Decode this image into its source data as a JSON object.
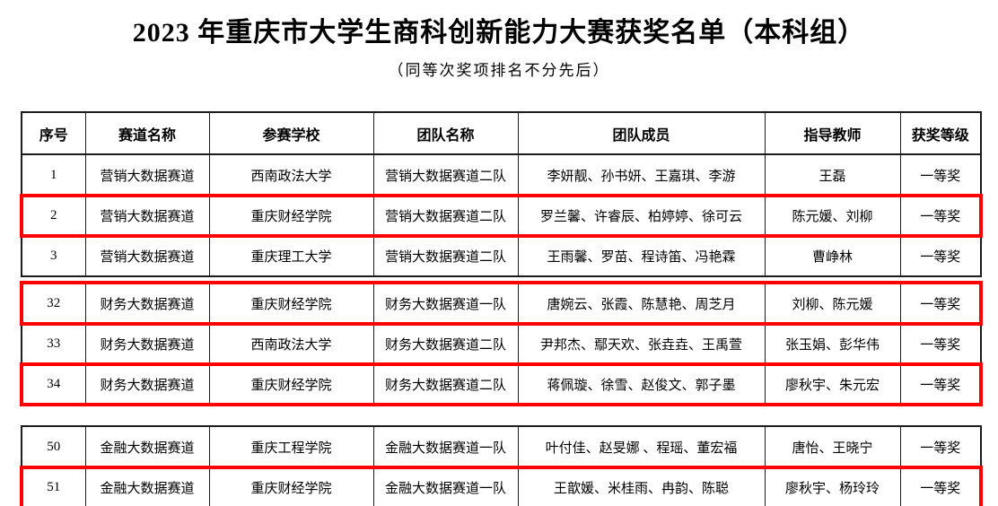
{
  "title": "2023 年重庆市大学生商科创新能力大赛获奖名单（本科组）",
  "subtitle": "（同等次奖项排名不分先后）",
  "table": {
    "columns": [
      "序号",
      "赛道名称",
      "参赛学校",
      "团队名称",
      "团队成员",
      "指导教师",
      "获奖等级"
    ],
    "highlight_color": "#fd0000",
    "border_color": "#1c1c1c",
    "blocks": [
      {
        "has_header": true,
        "partial_next_row": false,
        "rows": [
          {
            "no": "1",
            "track": "营销大数据赛道",
            "school": "西南政法大学",
            "team": "营销大数据赛道二队",
            "members": "李妍靓、孙书妍、王嘉琪、李游",
            "teachers": "王磊",
            "award": "一等奖",
            "highlighted": false
          },
          {
            "no": "2",
            "track": "营销大数据赛道",
            "school": "重庆财经学院",
            "team": "营销大数据赛道二队",
            "members": "罗兰馨、许睿辰、柏婷婷、徐可云",
            "teachers": "陈元媛、刘柳",
            "award": "一等奖",
            "highlighted": true
          },
          {
            "no": "3",
            "track": "营销大数据赛道",
            "school": "重庆理工大学",
            "team": "营销大数据赛道二队",
            "members": "王雨馨、罗苗、程诗笛、冯艳霖",
            "teachers": "曹峥林",
            "award": "一等奖",
            "highlighted": false
          }
        ]
      },
      {
        "has_header": false,
        "partial_next_row": false,
        "rows": [
          {
            "no": "32",
            "track": "财务大数据赛道",
            "school": "重庆财经学院",
            "team": "财务大数据赛道一队",
            "members": "唐婉云、张霞、陈慧艳、周芝月",
            "teachers": "刘柳、陈元媛",
            "award": "一等奖",
            "highlighted": true
          },
          {
            "no": "33",
            "track": "财务大数据赛道",
            "school": "西南政法大学",
            "team": "财务大数据赛道二队",
            "members": "尹邦杰、鄢天欢、张垚垚、王禹萱",
            "teachers": "张玉娟、彭华伟",
            "award": "一等奖",
            "highlighted": false
          },
          {
            "no": "34",
            "track": "财务大数据赛道",
            "school": "重庆财经学院",
            "team": "财务大数据赛道二队",
            "members": "蒋佩璇、徐雪、赵俊文、郭子墨",
            "teachers": "廖秋宇、朱元宏",
            "award": "一等奖",
            "highlighted": true
          }
        ]
      },
      {
        "has_header": false,
        "partial_next_row": true,
        "rows": [
          {
            "no": "50",
            "track": "金融大数据赛道",
            "school": "重庆工程学院",
            "team": "金融大数据赛道一队",
            "members": "叶付佳、赵旻娜 、程瑶、董宏福",
            "teachers": "唐怡、王晓宁",
            "award": "一等奖",
            "highlighted": false
          },
          {
            "no": "51",
            "track": "金融大数据赛道",
            "school": "重庆财经学院",
            "team": "金融大数据赛道一队",
            "members": "王歆媛、米桂雨、冉韵、陈聪",
            "teachers": "廖秋宇、杨玲玲",
            "award": "一等奖",
            "highlighted": true
          }
        ]
      }
    ]
  }
}
